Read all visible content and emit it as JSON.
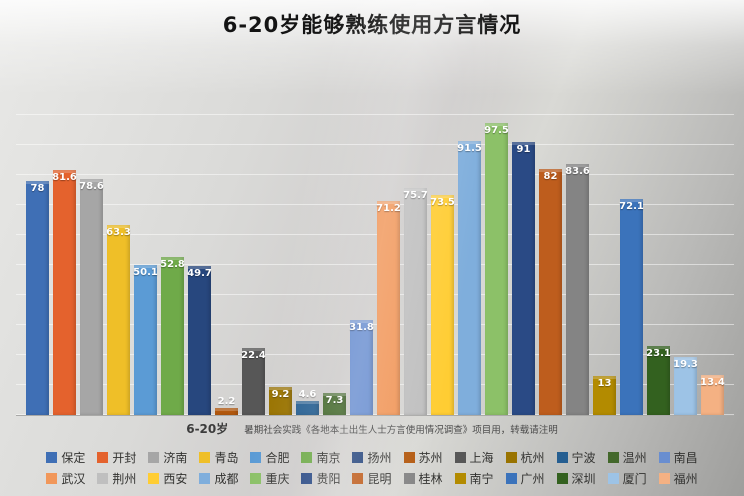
{
  "title": "6-20岁能够熟练使用方言情况",
  "axis": {
    "category_label": "6-20岁"
  },
  "note": "暑期社会实践《各地本土出生人士方言使用情况调查》项目用，转载请注明",
  "chart_data": {
    "type": "bar",
    "title": "6-20岁能够熟练使用方言情况",
    "categories": [
      "6-20岁"
    ],
    "xlabel": "6-20岁",
    "ylabel": "",
    "ylim": [
      0,
      100
    ],
    "grid": true,
    "legend_position": "bottom",
    "series": [
      {
        "name": "保定",
        "value": 78,
        "color": "#3F6FB5"
      },
      {
        "name": "开封",
        "value": 81.6,
        "color": "#E4622D"
      },
      {
        "name": "济南",
        "value": 78.6,
        "color": "#A6A6A6"
      },
      {
        "name": "青岛",
        "value": 63.3,
        "color": "#EFBF28"
      },
      {
        "name": "合肥",
        "value": 50.1,
        "color": "#5B9BD5"
      },
      {
        "name": "南京",
        "value": 52.8,
        "color": "#6FAA49"
      },
      {
        "name": "扬州",
        "value": 49.7,
        "color": "#27477E"
      },
      {
        "name": "苏州",
        "value": 2.2,
        "color": "#B3590F"
      },
      {
        "name": "上海",
        "value": 22.4,
        "color": "#575757"
      },
      {
        "name": "杭州",
        "value": 9.2,
        "color": "#997300"
      },
      {
        "name": "宁波",
        "value": 4.6,
        "color": "#255E91"
      },
      {
        "name": "温州",
        "value": 7.3,
        "color": "#43682B"
      },
      {
        "name": "南昌",
        "value": 31.8,
        "color": "#698ED0"
      },
      {
        "name": "武汉",
        "value": 71.2,
        "color": "#F1975A"
      },
      {
        "name": "荆州",
        "value": 75.7,
        "color": "#BFBFBF"
      },
      {
        "name": "西安",
        "value": 73.5,
        "color": "#FFCD33"
      },
      {
        "name": "成都",
        "value": 91.5,
        "color": "#7FAEDC"
      },
      {
        "name": "重庆",
        "value": 97.5,
        "color": "#8CC168"
      },
      {
        "name": "贵阳",
        "value": 91,
        "color": "#2A4A85"
      },
      {
        "name": "昆明",
        "value": 82,
        "color": "#BE5D1D"
      },
      {
        "name": "桂林",
        "value": 83.6,
        "color": "#848484"
      },
      {
        "name": "南宁",
        "value": 13,
        "color": "#B38B00"
      },
      {
        "name": "广州",
        "value": 72.1,
        "color": "#3B73BB"
      },
      {
        "name": "深圳",
        "value": 23.1,
        "color": "#33611F"
      },
      {
        "name": "厦门",
        "value": 19.3,
        "color": "#9DC3E6"
      },
      {
        "name": "福州",
        "value": 13.4,
        "color": "#F4B183"
      }
    ]
  }
}
